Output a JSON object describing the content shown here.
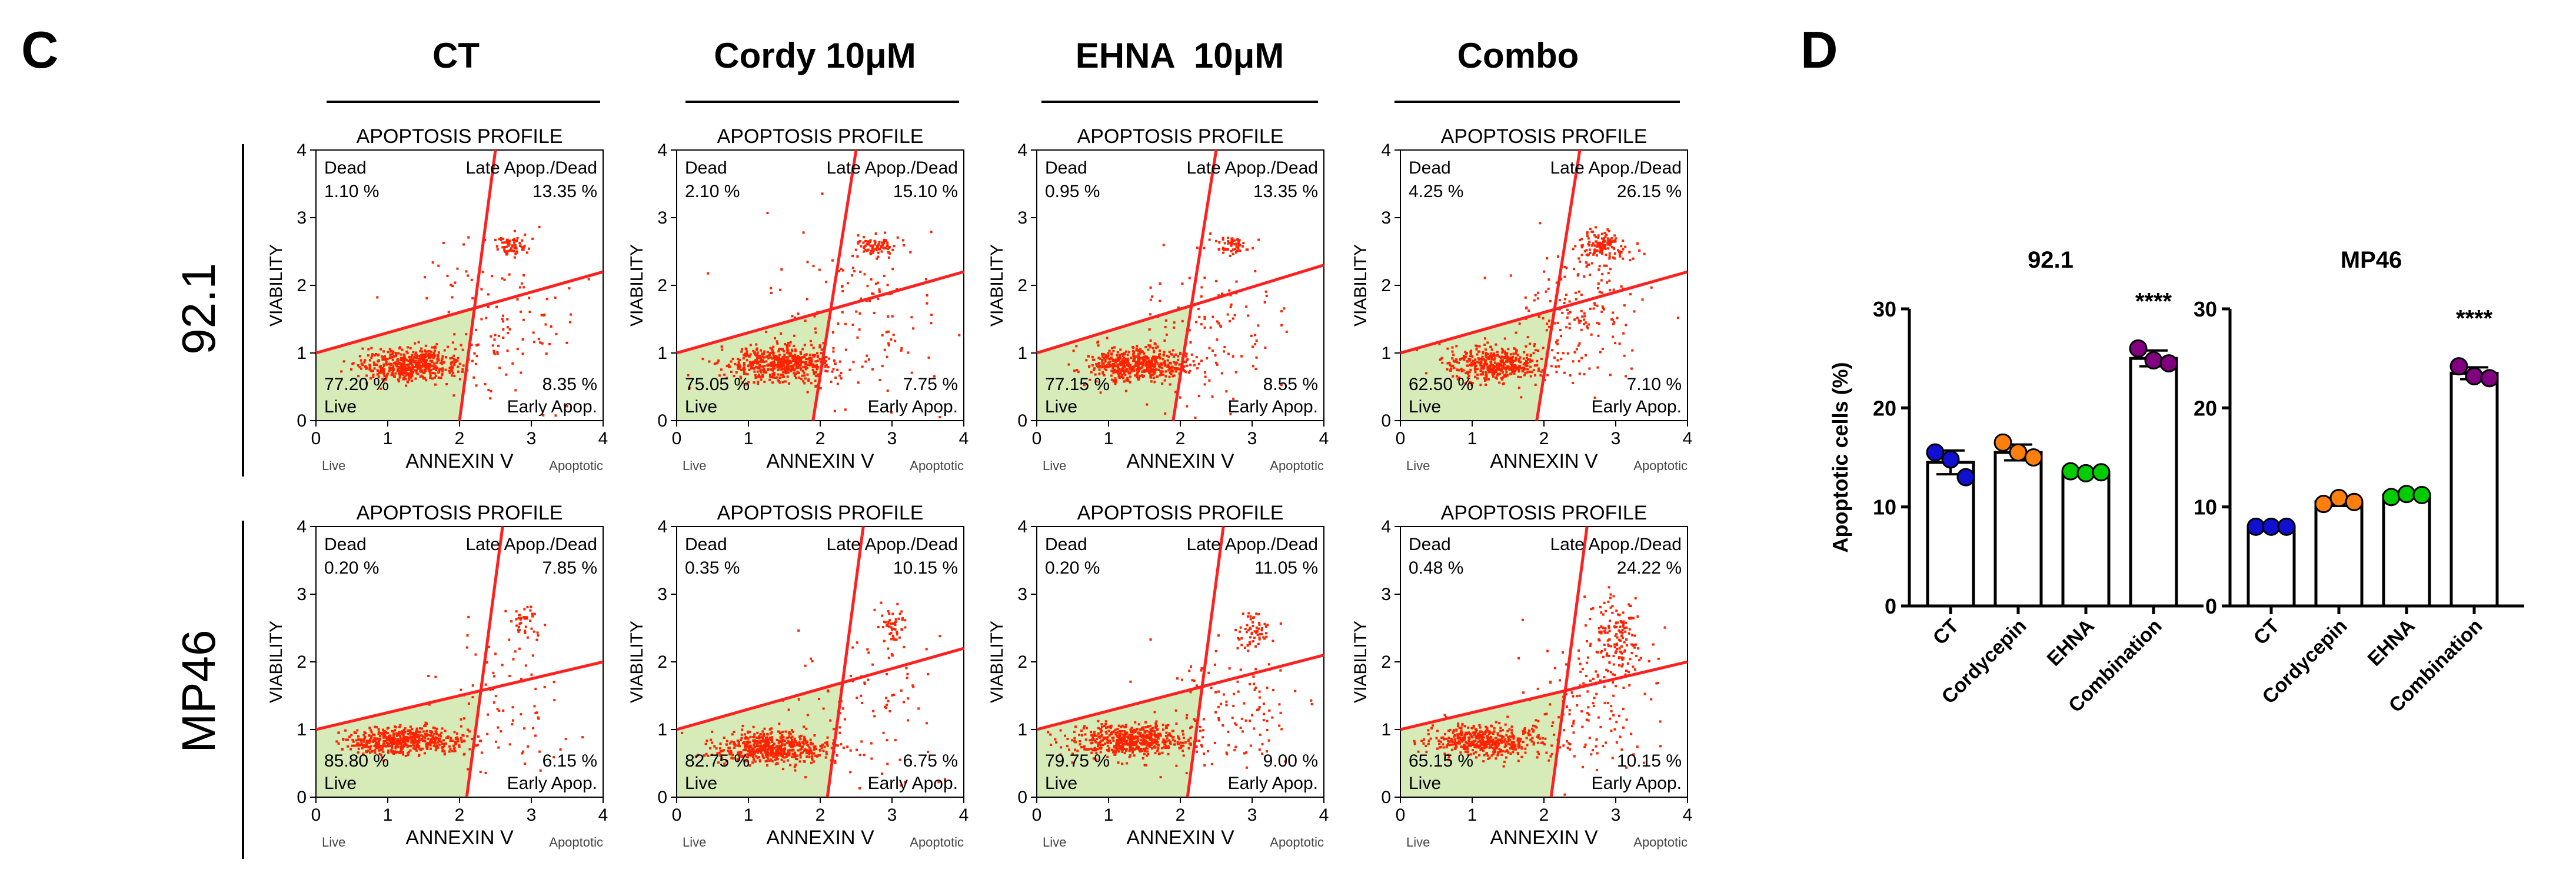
{
  "panel_c_label": "C",
  "panel_d_label": "D",
  "treatments": [
    "CT",
    "Cordy 10μM",
    "EHNA  10μM",
    "Combo"
  ],
  "cell_lines": [
    "92.1",
    "MP46"
  ],
  "flow_common": {
    "title": "APOPTOSIS PROFILE",
    "xlabel": "ANNEXIN V",
    "ylabel": "VIABILITY",
    "x_ticks": [
      "0",
      "1",
      "2",
      "3",
      "4"
    ],
    "y_ticks": [
      "0",
      "1",
      "2",
      "3",
      "4"
    ],
    "below_left": "Live",
    "below_right": "Apoptotic",
    "q_dead": "Dead",
    "q_late": "Late Apop./Dead",
    "q_live": "Live",
    "q_early": "Early Apop."
  },
  "chart_data": [
    {
      "type": "scatter",
      "row": "92.1",
      "treatment": "CT",
      "title": "APOPTOSIS PROFILE",
      "xlim": [
        0,
        4
      ],
      "ylim": [
        0,
        4
      ],
      "dead": "1.10 %",
      "late": "13.35 %",
      "live": "77.20 %",
      "early": "8.35 %",
      "line_v": [
        [
          2.0,
          0
        ],
        [
          2.5,
          4
        ]
      ],
      "line_h": [
        [
          0,
          1.0
        ],
        [
          4,
          2.2
        ]
      ],
      "clusters": [
        {
          "x": 1.3,
          "y": 0.85,
          "sx": 0.35,
          "sy": 0.12,
          "n": 520
        },
        {
          "x": 2.7,
          "y": 2.6,
          "sx": 0.12,
          "sy": 0.08,
          "n": 70
        },
        {
          "x": 2.5,
          "y": 1.4,
          "sx": 0.6,
          "sy": 0.6,
          "n": 120
        }
      ]
    },
    {
      "type": "scatter",
      "row": "92.1",
      "treatment": "Cordy 10μM",
      "title": "APOPTOSIS PROFILE",
      "xlim": [
        0,
        4
      ],
      "ylim": [
        0,
        4
      ],
      "dead": "2.10 %",
      "late": "15.10 %",
      "live": "75.05 %",
      "early": "7.75 %",
      "line_v": [
        [
          1.9,
          0
        ],
        [
          2.5,
          4
        ]
      ],
      "line_h": [
        [
          0,
          1.0
        ],
        [
          4,
          2.2
        ]
      ],
      "clusters": [
        {
          "x": 1.4,
          "y": 0.85,
          "sx": 0.38,
          "sy": 0.13,
          "n": 520
        },
        {
          "x": 2.75,
          "y": 2.6,
          "sx": 0.15,
          "sy": 0.08,
          "n": 80
        },
        {
          "x": 2.5,
          "y": 1.5,
          "sx": 0.6,
          "sy": 0.6,
          "n": 130
        }
      ]
    },
    {
      "type": "scatter",
      "row": "92.1",
      "treatment": "EHNA  10μM",
      "title": "APOPTOSIS PROFILE",
      "xlim": [
        0,
        4
      ],
      "ylim": [
        0,
        4
      ],
      "dead": "0.95 %",
      "late": "13.35 %",
      "live": "77.15 %",
      "early": "8.55 %",
      "line_v": [
        [
          1.9,
          0
        ],
        [
          2.5,
          4
        ]
      ],
      "line_h": [
        [
          0,
          1.0
        ],
        [
          4,
          2.3
        ]
      ],
      "clusters": [
        {
          "x": 1.4,
          "y": 0.85,
          "sx": 0.35,
          "sy": 0.12,
          "n": 520
        },
        {
          "x": 2.7,
          "y": 2.6,
          "sx": 0.13,
          "sy": 0.08,
          "n": 60
        },
        {
          "x": 2.4,
          "y": 1.4,
          "sx": 0.6,
          "sy": 0.6,
          "n": 120
        }
      ]
    },
    {
      "type": "scatter",
      "row": "92.1",
      "treatment": "Combo",
      "title": "APOPTOSIS PROFILE",
      "xlim": [
        0,
        4
      ],
      "ylim": [
        0,
        4
      ],
      "dead": "4.25 %",
      "late": "26.15 %",
      "live": "62.50 %",
      "early": "7.10 %",
      "line_v": [
        [
          1.9,
          0
        ],
        [
          2.5,
          4
        ]
      ],
      "line_h": [
        [
          0,
          1.0
        ],
        [
          4,
          2.2
        ]
      ],
      "clusters": [
        {
          "x": 1.3,
          "y": 0.85,
          "sx": 0.35,
          "sy": 0.13,
          "n": 430
        },
        {
          "x": 2.8,
          "y": 2.6,
          "sx": 0.18,
          "sy": 0.12,
          "n": 140
        },
        {
          "x": 2.4,
          "y": 1.6,
          "sx": 0.45,
          "sy": 0.5,
          "n": 180
        }
      ]
    },
    {
      "type": "scatter",
      "row": "MP46",
      "treatment": "CT",
      "title": "APOPTOSIS PROFILE",
      "xlim": [
        0,
        4
      ],
      "ylim": [
        0,
        4
      ],
      "dead": "0.20 %",
      "late": "7.85 %",
      "live": "85.80 %",
      "early": "6.15 %",
      "line_v": [
        [
          2.1,
          0
        ],
        [
          2.6,
          4
        ]
      ],
      "line_h": [
        [
          0,
          1.0
        ],
        [
          4,
          2.0
        ]
      ],
      "clusters": [
        {
          "x": 1.2,
          "y": 0.85,
          "sx": 0.38,
          "sy": 0.1,
          "n": 560
        },
        {
          "x": 2.9,
          "y": 2.6,
          "sx": 0.1,
          "sy": 0.12,
          "n": 40
        },
        {
          "x": 2.6,
          "y": 1.4,
          "sx": 0.5,
          "sy": 0.6,
          "n": 80
        }
      ]
    },
    {
      "type": "scatter",
      "row": "MP46",
      "treatment": "Cordy 10μM",
      "title": "APOPTOSIS PROFILE",
      "xlim": [
        0,
        4
      ],
      "ylim": [
        0,
        4
      ],
      "dead": "0.35 %",
      "late": "10.15 %",
      "live": "82.75 %",
      "early": "6.75 %",
      "line_v": [
        [
          2.1,
          0
        ],
        [
          2.6,
          4
        ]
      ],
      "line_h": [
        [
          0,
          1.0
        ],
        [
          4,
          2.2
        ]
      ],
      "clusters": [
        {
          "x": 1.3,
          "y": 0.75,
          "sx": 0.4,
          "sy": 0.12,
          "n": 560
        },
        {
          "x": 3.0,
          "y": 2.55,
          "sx": 0.1,
          "sy": 0.12,
          "n": 50
        },
        {
          "x": 2.7,
          "y": 1.4,
          "sx": 0.5,
          "sy": 0.6,
          "n": 90
        }
      ]
    },
    {
      "type": "scatter",
      "row": "MP46",
      "treatment": "EHNA  10μM",
      "title": "APOPTOSIS PROFILE",
      "xlim": [
        0,
        4
      ],
      "ylim": [
        0,
        4
      ],
      "dead": "0.20 %",
      "late": "11.05 %",
      "live": "79.75 %",
      "early": "9.00 %",
      "line_v": [
        [
          2.1,
          0
        ],
        [
          2.6,
          4
        ]
      ],
      "line_h": [
        [
          0,
          1.0
        ],
        [
          4,
          2.1
        ]
      ],
      "clusters": [
        {
          "x": 1.3,
          "y": 0.85,
          "sx": 0.42,
          "sy": 0.12,
          "n": 560
        },
        {
          "x": 3.0,
          "y": 2.5,
          "sx": 0.12,
          "sy": 0.15,
          "n": 60
        },
        {
          "x": 2.7,
          "y": 1.3,
          "sx": 0.5,
          "sy": 0.5,
          "n": 110
        }
      ]
    },
    {
      "type": "scatter",
      "row": "MP46",
      "treatment": "Combo",
      "title": "APOPTOSIS PROFILE",
      "xlim": [
        0,
        4
      ],
      "ylim": [
        0,
        4
      ],
      "dead": "0.48 %",
      "late": "24.22 %",
      "live": "65.15 %",
      "early": "10.15 %",
      "line_v": [
        [
          2.1,
          0
        ],
        [
          2.6,
          4
        ]
      ],
      "line_h": [
        [
          0,
          1.0
        ],
        [
          4,
          2.0
        ]
      ],
      "clusters": [
        {
          "x": 1.2,
          "y": 0.85,
          "sx": 0.38,
          "sy": 0.12,
          "n": 470
        },
        {
          "x": 3.0,
          "y": 2.4,
          "sx": 0.15,
          "sy": 0.3,
          "n": 130
        },
        {
          "x": 2.7,
          "y": 1.5,
          "sx": 0.45,
          "sy": 0.6,
          "n": 160
        }
      ]
    },
    {
      "type": "bar",
      "title": "92.1",
      "ylabel": "Apoptotic cells (%)",
      "ylim": [
        0,
        30
      ],
      "yticks": [
        "0",
        "10",
        "20",
        "30"
      ],
      "categories": [
        "CT",
        "Cordycepin",
        "EHNA",
        "Combination"
      ],
      "values": [
        14.5,
        15.5,
        13.5,
        25.0
      ],
      "errors": [
        1.2,
        0.8,
        0.3,
        0.8
      ],
      "points": [
        [
          15.5,
          14.8,
          13.0
        ],
        [
          16.5,
          15.5,
          15.0
        ],
        [
          13.6,
          13.4,
          13.5
        ],
        [
          26.0,
          24.8,
          24.5
        ]
      ],
      "colors": [
        "#1010d0",
        "#ff7f0e",
        "#00cc00",
        "#800080"
      ],
      "annotation": "****",
      "annotation_category": "Combination"
    },
    {
      "type": "bar",
      "title": "MP46",
      "ylabel": "",
      "ylim": [
        0,
        30
      ],
      "yticks": [
        "0",
        "10",
        "20",
        "30"
      ],
      "categories": [
        "CT",
        "Cordycepin",
        "EHNA",
        "Combination"
      ],
      "values": [
        8.0,
        10.5,
        11.2,
        23.5
      ],
      "errors": [
        0.2,
        0.4,
        0.3,
        0.6
      ],
      "points": [
        [
          8.0,
          8.0,
          8.0
        ],
        [
          10.3,
          10.9,
          10.5
        ],
        [
          11.0,
          11.3,
          11.2
        ],
        [
          24.2,
          23.2,
          23.0
        ]
      ],
      "colors": [
        "#1010d0",
        "#ff7f0e",
        "#00cc00",
        "#800080"
      ],
      "annotation": "****",
      "annotation_category": "Combination"
    }
  ]
}
